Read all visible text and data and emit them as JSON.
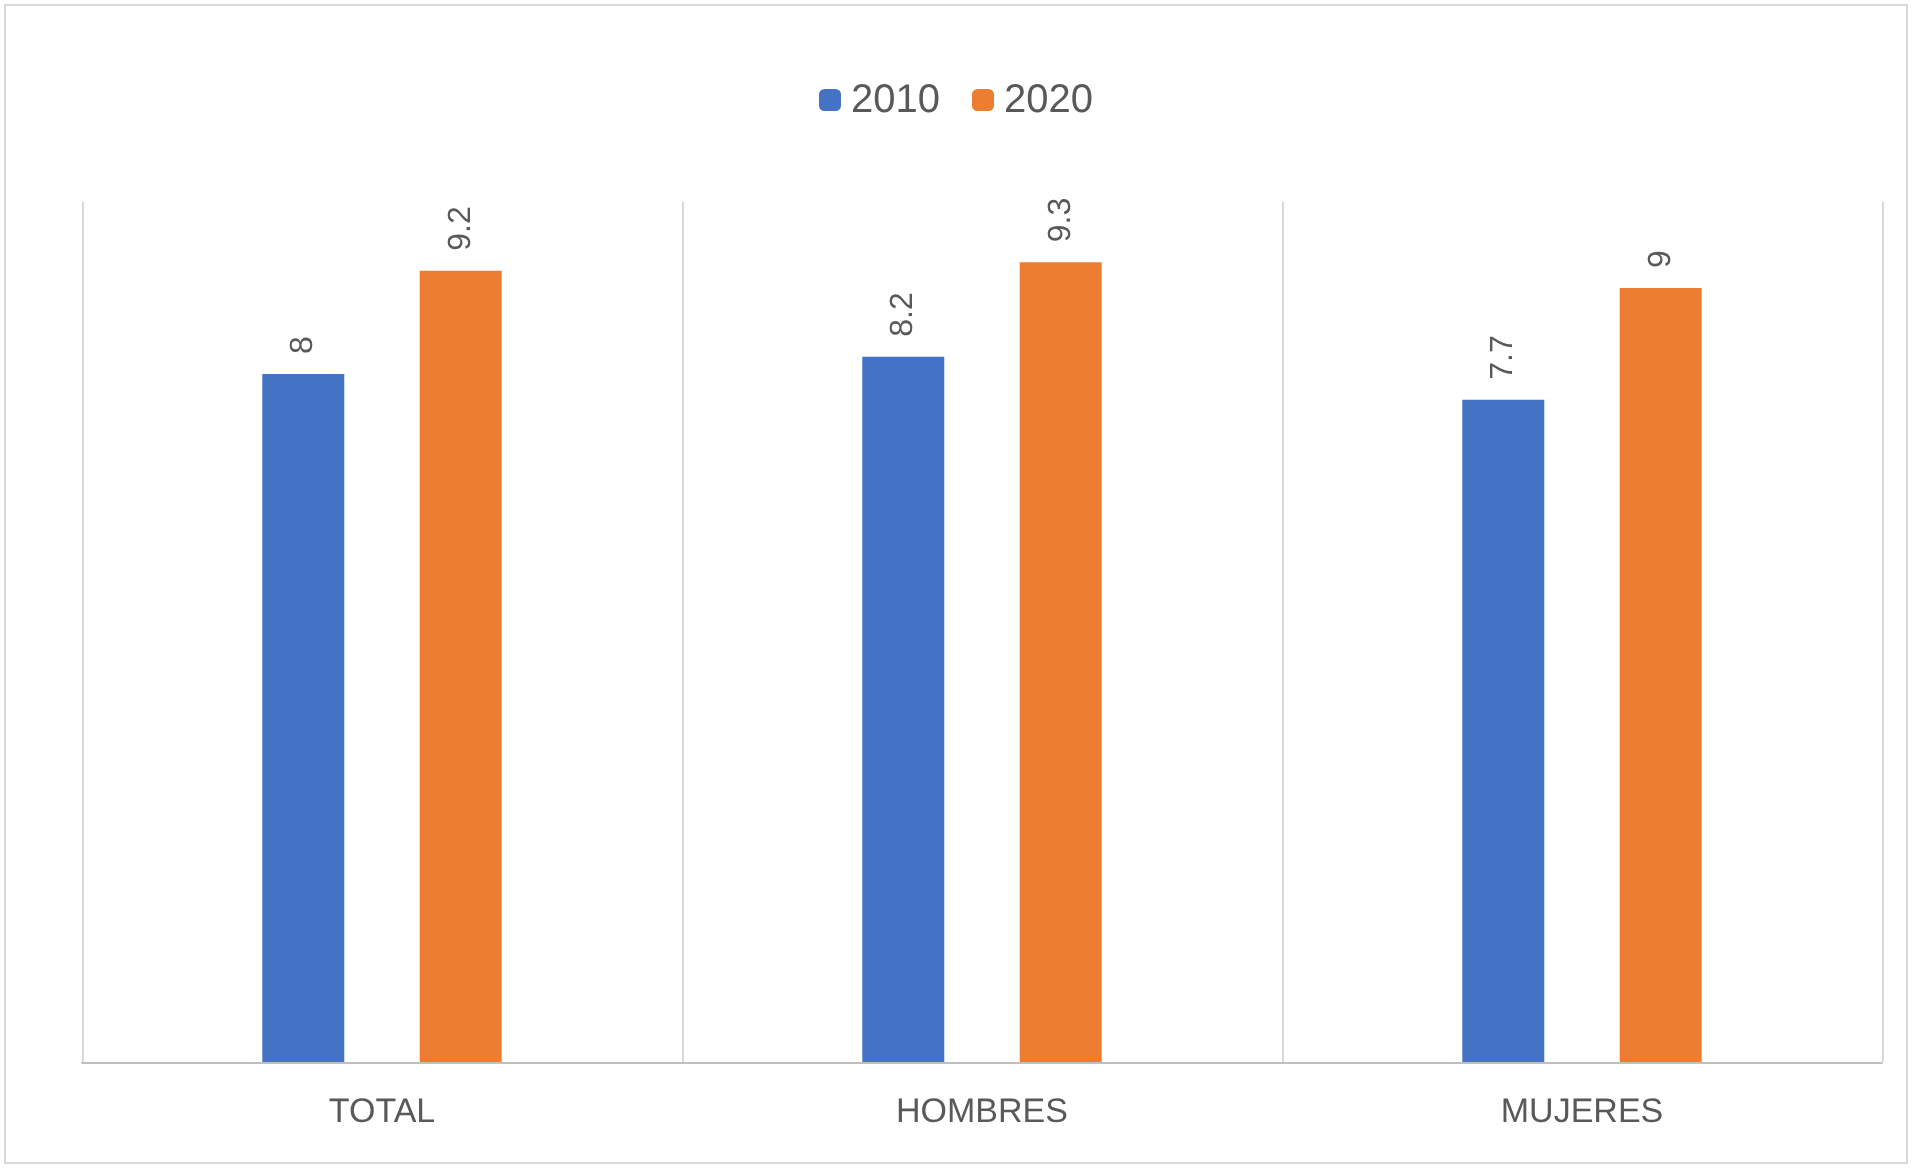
{
  "chart_data": {
    "type": "bar",
    "categories": [
      "TOTAL",
      "HOMBRES",
      "MUJERES"
    ],
    "series": [
      {
        "name": "2010",
        "color": "#4472c4",
        "values": [
          8,
          8.2,
          7.7
        ]
      },
      {
        "name": "2020",
        "color": "#ed7d31",
        "values": [
          9.2,
          9.3,
          9
        ]
      }
    ],
    "data_labels": true,
    "grid": "x",
    "legend": "top"
  }
}
